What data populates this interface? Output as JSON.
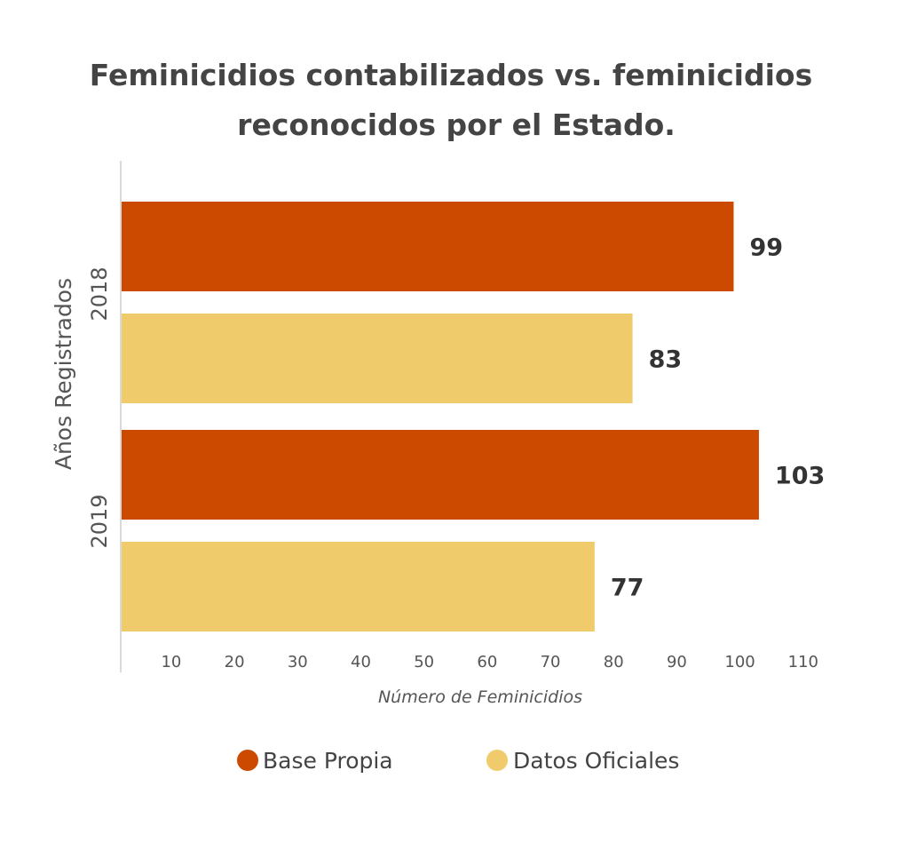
{
  "chart_data": {
    "type": "bar",
    "orientation": "horizontal",
    "title_lines": [
      "Feminicidios contabilizados vs. feminicidios",
      "reconocidos por el Estado."
    ],
    "categories": [
      "2018",
      "2019"
    ],
    "series": [
      {
        "name": "Base Propia",
        "color": "#CC4A00",
        "values": [
          99,
          103
        ]
      },
      {
        "name": "Datos Oficiales",
        "color": "#EFCB6C",
        "values": [
          83,
          77
        ]
      }
    ],
    "xlabel": "Número de Feminicidios",
    "ylabel": "Años Registrados",
    "xlim": [
      2,
      112
    ],
    "xticks": [
      "10",
      "20",
      "30",
      "40",
      "50",
      "60",
      "70",
      "80",
      "90",
      "100",
      "110"
    ],
    "legend_position": "bottom",
    "grid": false
  }
}
